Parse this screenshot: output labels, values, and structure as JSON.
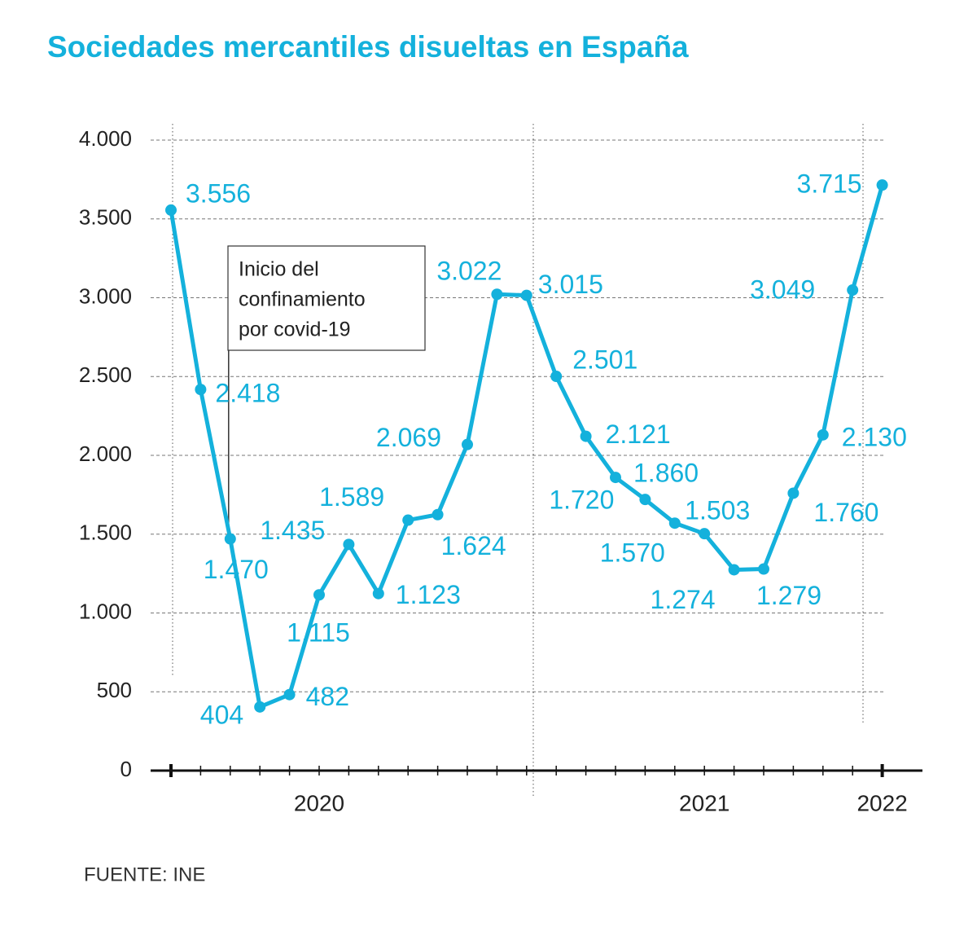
{
  "chart_data": {
    "type": "line",
    "title": "Sociedades mercantiles disueltas en España",
    "source": "FUENTE: INE",
    "annotation": [
      "Inicio del",
      "confinamiento",
      "por covid-19"
    ],
    "categories": [
      null,
      null,
      null,
      null,
      null,
      "2020",
      null,
      null,
      null,
      null,
      null,
      null,
      null,
      null,
      null,
      null,
      null,
      null,
      "2021",
      null,
      null,
      null,
      null,
      null,
      "2022"
    ],
    "series": [
      {
        "color": "#14b1dc",
        "values": [
          3556,
          2418,
          1470,
          404,
          482,
          1115,
          1435,
          1123,
          1589,
          1624,
          2069,
          3022,
          3015,
          2501,
          2121,
          1860,
          1720,
          1570,
          1503,
          1274,
          1279,
          1760,
          2130,
          3049,
          3715
        ],
        "value_labels": [
          "3.556",
          "2.418",
          "1.470",
          "404",
          "482",
          "1.115",
          "1.435",
          "1.123",
          "1.589",
          "1.624",
          "2.069",
          "3.022",
          "3.015",
          "2.501",
          "2.121",
          "1.860",
          "1.720",
          "1.570",
          "1.503",
          "1.274",
          "1.279",
          "1.760",
          "2.130",
          "3.049",
          "3.715"
        ]
      }
    ],
    "ylim": [
      0,
      4000
    ],
    "yticks": [
      0,
      500,
      {
        "value": 1000,
        "label": "1.000"
      },
      {
        "value": 1500,
        "label": "1.500"
      },
      {
        "value": 2000,
        "label": "2.000"
      },
      {
        "value": 2500,
        "label": "2.500"
      },
      {
        "value": 3000,
        "label": "3.000"
      },
      {
        "value": 3500,
        "label": "3.500"
      },
      {
        "value": 4000,
        "label": "4.000"
      }
    ],
    "grid": true
  }
}
